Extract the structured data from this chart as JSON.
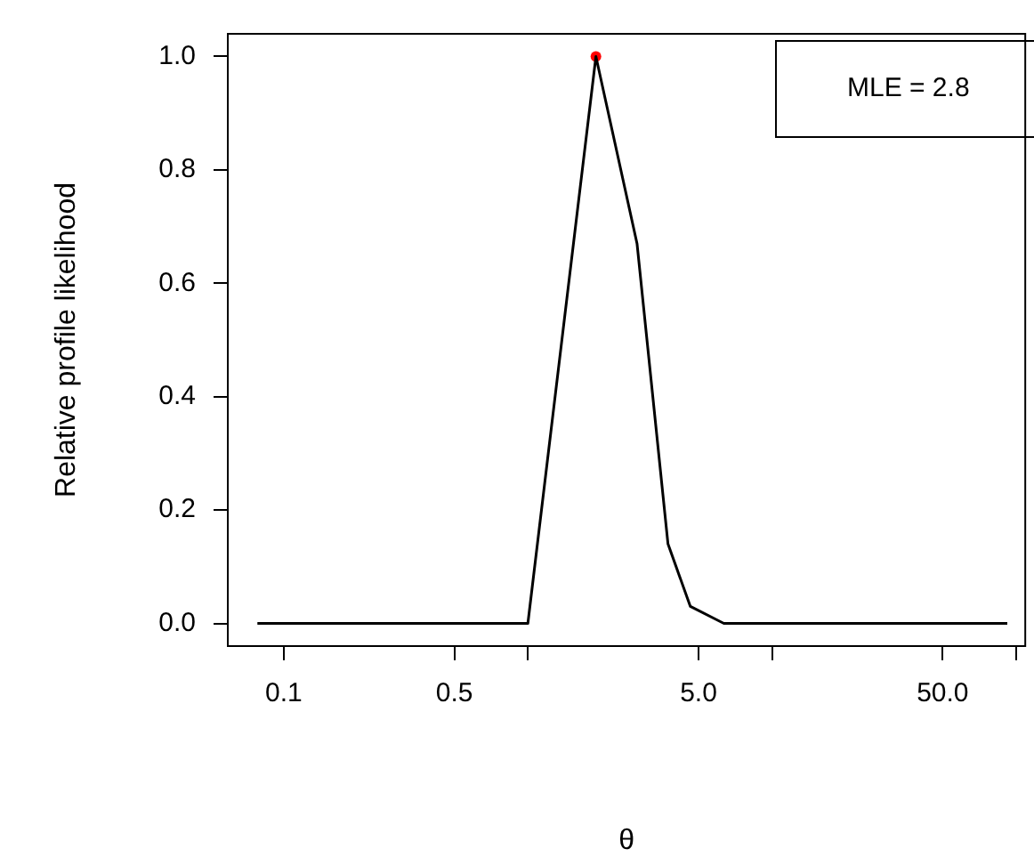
{
  "chart_data": {
    "type": "line",
    "xlabel": "θ",
    "ylabel": "Relative profile likelihood",
    "log": "x",
    "xlim": [
      0.059,
      109
    ],
    "ylim": [
      -0.04,
      1.04
    ],
    "xticks": [
      0.1,
      0.5,
      {
        "value": 1,
        "label": null
      },
      {
        "value": 5,
        "label": "5.0"
      },
      {
        "value": 10,
        "label": null
      },
      {
        "value": 50,
        "label": "50.0"
      },
      {
        "value": 100,
        "label": null
      }
    ],
    "yticks": [
      {
        "value": 0,
        "label": "0.0"
      },
      {
        "value": 0.2,
        "label": "0.2"
      },
      {
        "value": 0.4,
        "label": "0.4"
      },
      {
        "value": 0.6,
        "label": "0.6"
      },
      {
        "value": 0.8,
        "label": "0.8"
      },
      {
        "value": 1,
        "label": "1.0"
      }
    ],
    "series": [
      {
        "color": "#000000",
        "marker": "none",
        "x": [
          0.078,
          1,
          1.9,
          2.8,
          3.75,
          4.63,
          6.35,
          92
        ],
        "values": [
          0,
          0,
          1,
          0.67,
          0.14,
          0.03,
          0,
          0
        ]
      },
      {
        "type": "scatter",
        "color": "#ff0000",
        "marker": "circle",
        "x": [
          1.9
        ],
        "values": [
          1
        ]
      }
    ],
    "annotations": [
      "MLE = 2.8"
    ],
    "grid": false,
    "legend": false
  }
}
